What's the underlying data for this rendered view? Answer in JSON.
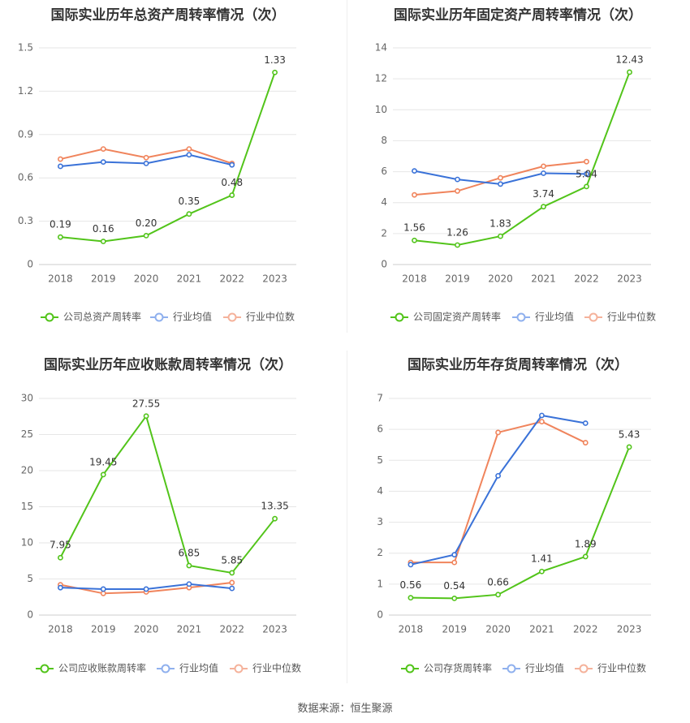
{
  "source_label": "数据来源：恒生聚源",
  "charts": [
    {
      "type": "line",
      "title": "国际实业历年总资产周转率情况（次）",
      "categories": [
        "2018",
        "2019",
        "2020",
        "2021",
        "2022",
        "2023"
      ],
      "ylim": [
        0,
        1.5
      ],
      "yticks": [
        "0",
        "0.3",
        "0.6",
        "0.9",
        "1.2",
        "1.5"
      ],
      "grid": true,
      "legend_position": "bottom",
      "series": [
        {
          "name": "公司总资产周转率",
          "color": "#52c41a",
          "values": [
            0.19,
            0.16,
            0.2,
            0.35,
            0.48,
            1.33
          ],
          "labels": [
            "0.19",
            "0.16",
            "0.20",
            "0.35",
            "0.48",
            "1.33"
          ]
        },
        {
          "name": "行业均值",
          "color": "#3a72d8",
          "values": [
            0.68,
            0.71,
            0.7,
            0.76,
            0.69,
            null
          ]
        },
        {
          "name": "行业中位数",
          "color": "#f0845c",
          "values": [
            0.73,
            0.8,
            0.74,
            0.8,
            0.7,
            null
          ]
        }
      ]
    },
    {
      "type": "line",
      "title": "国际实业历年固定资产周转率情况（次）",
      "categories": [
        "2018",
        "2019",
        "2020",
        "2021",
        "2022",
        "2023"
      ],
      "ylim": [
        0,
        14
      ],
      "yticks": [
        "0",
        "2",
        "4",
        "6",
        "8",
        "10",
        "12",
        "14"
      ],
      "grid": true,
      "legend_position": "bottom",
      "series": [
        {
          "name": "公司固定资产周转率",
          "color": "#52c41a",
          "values": [
            1.56,
            1.26,
            1.83,
            3.74,
            5.04,
            12.43
          ],
          "labels": [
            "1.56",
            "1.26",
            "1.83",
            "3.74",
            "5.04",
            "12.43"
          ]
        },
        {
          "name": "行业均值",
          "color": "#3a72d8",
          "values": [
            6.05,
            5.5,
            5.2,
            5.9,
            5.85,
            null
          ]
        },
        {
          "name": "行业中位数",
          "color": "#f0845c",
          "values": [
            4.5,
            4.75,
            5.6,
            6.35,
            6.65,
            null
          ]
        }
      ]
    },
    {
      "type": "line",
      "title": "国际实业历年应收账款周转率情况（次）",
      "categories": [
        "2018",
        "2019",
        "2020",
        "2021",
        "2022",
        "2023"
      ],
      "ylim": [
        0,
        30
      ],
      "yticks": [
        "0",
        "5",
        "10",
        "15",
        "20",
        "25",
        "30"
      ],
      "grid": true,
      "legend_position": "bottom",
      "series": [
        {
          "name": "公司应收账款周转率",
          "color": "#52c41a",
          "values": [
            7.95,
            19.45,
            27.55,
            6.85,
            5.85,
            13.35
          ],
          "labels": [
            "7.95",
            "19.45",
            "27.55",
            "6.85",
            "5.85",
            "13.35"
          ]
        },
        {
          "name": "行业均值",
          "color": "#3a72d8",
          "values": [
            3.8,
            3.6,
            3.6,
            4.3,
            3.7,
            null
          ]
        },
        {
          "name": "行业中位数",
          "color": "#f0845c",
          "values": [
            4.2,
            3.0,
            3.2,
            3.8,
            4.5,
            null
          ]
        }
      ]
    },
    {
      "type": "line",
      "title": "国际实业历年存货周转率情况（次）",
      "categories": [
        "2018",
        "2019",
        "2020",
        "2021",
        "2022",
        "2023"
      ],
      "ylim": [
        0,
        7
      ],
      "yticks": [
        "0",
        "1",
        "2",
        "3",
        "4",
        "5",
        "6",
        "7"
      ],
      "grid": true,
      "legend_position": "bottom",
      "series": [
        {
          "name": "公司存货周转率",
          "color": "#52c41a",
          "values": [
            0.56,
            0.54,
            0.66,
            1.41,
            1.89,
            5.43
          ],
          "labels": [
            "0.56",
            "0.54",
            "0.66",
            "1.41",
            "1.89",
            "5.43"
          ]
        },
        {
          "name": "行业均值",
          "color": "#3a72d8",
          "values": [
            1.63,
            1.95,
            4.5,
            6.45,
            6.2,
            null
          ]
        },
        {
          "name": "行业中位数",
          "color": "#f0845c",
          "values": [
            1.7,
            1.7,
            5.9,
            6.25,
            5.57,
            null
          ]
        }
      ]
    }
  ]
}
